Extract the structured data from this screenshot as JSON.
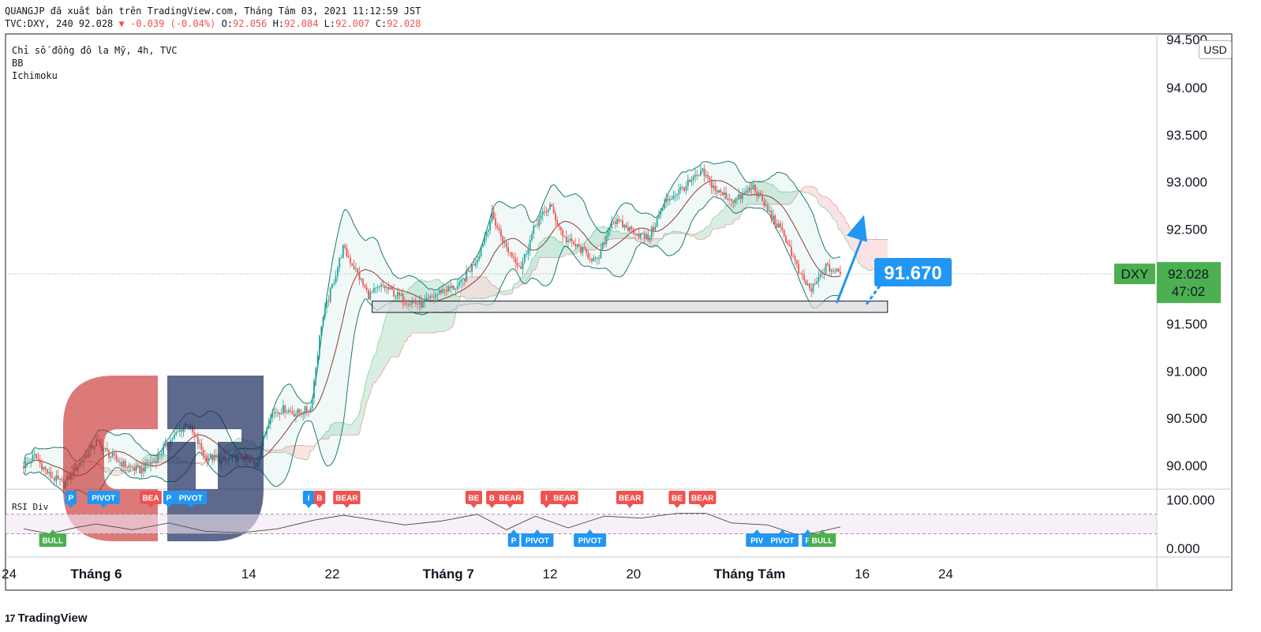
{
  "header": {
    "publisher_line": "QUANGJP đã xuất bản trên TradingView.com, Tháng Tám 03, 2021 11:12:59 JST",
    "symbol_prefix": "TVC:DXY, 240 92.028",
    "change": "▼ -0.039 (-0.04%)",
    "ohlc_o_label": "O:",
    "ohlc_o": "92.056",
    "ohlc_h_label": "H:",
    "ohlc_h": "92.084",
    "ohlc_l_label": "L:",
    "ohlc_l": "92.007",
    "ohlc_c_label": "C:",
    "ohlc_c": "92.028"
  },
  "legend": {
    "line1": "Chỉ số đồng đô la Mỹ, 4h, TVC",
    "line2": "BB",
    "line3": "Ichimoku",
    "rsi": "RSI Div"
  },
  "currency_button": "USD",
  "price_label": {
    "symbol": "DXY",
    "price": "92.028",
    "countdown": "47:02"
  },
  "annotation": {
    "target": "91.670"
  },
  "brand": {
    "name": "TradingView",
    "logo_icon": "tradingview-logo-icon"
  },
  "colors": {
    "up": "#26a69a",
    "down": "#ef5350",
    "bb": "#1b7a6e",
    "accent_blue": "#2196f3",
    "price_green": "#4caf50",
    "cloud_green": "#b8e0c8",
    "cloud_red": "#f7cccc",
    "watermark_red": "#c62828",
    "watermark_navy": "#1a2a5c"
  },
  "chart_data": {
    "type": "candlestick",
    "price_axis": {
      "ticks": [
        90.0,
        90.5,
        91.0,
        91.5,
        92.0,
        92.5,
        93.0,
        93.5,
        94.0
      ],
      "tick_labels": [
        "90.000",
        "90.500",
        "91.000",
        "91.500",
        "",
        "92.500",
        "93.000",
        "93.500",
        "94.000"
      ],
      "top_cut_label": "94.500",
      "range": [
        89.75,
        94.55
      ]
    },
    "rsi_axis": {
      "ticks": [
        0,
        100
      ],
      "tick_labels": [
        "0.000",
        "100.000"
      ],
      "range": [
        -10,
        120
      ]
    },
    "time_axis": {
      "labels": [
        "24",
        "Tháng 6",
        "14",
        "22",
        "Tháng 7",
        "12",
        "20",
        "Tháng Tám",
        "16",
        "24"
      ],
      "bold": [
        false,
        true,
        false,
        false,
        true,
        false,
        false,
        true,
        false,
        false
      ],
      "bar_index": [
        -8,
        40,
        124,
        170,
        234,
        290,
        336,
        400,
        462,
        508
      ]
    },
    "close_path": [
      [
        0,
        90.0
      ],
      [
        6,
        90.1
      ],
      [
        14,
        89.9
      ],
      [
        22,
        89.8
      ],
      [
        32,
        90.05
      ],
      [
        40,
        90.25
      ],
      [
        48,
        90.1
      ],
      [
        56,
        90.0
      ],
      [
        64,
        89.95
      ],
      [
        72,
        90.05
      ],
      [
        80,
        90.25
      ],
      [
        90,
        90.45
      ],
      [
        100,
        90.1
      ],
      [
        110,
        90.05
      ],
      [
        120,
        90.1
      ],
      [
        128,
        90.0
      ],
      [
        136,
        90.55
      ],
      [
        144,
        90.6
      ],
      [
        150,
        90.55
      ],
      [
        158,
        90.6
      ],
      [
        164,
        91.5
      ],
      [
        170,
        91.9
      ],
      [
        176,
        92.3
      ],
      [
        182,
        92.1
      ],
      [
        190,
        91.8
      ],
      [
        198,
        91.9
      ],
      [
        210,
        91.75
      ],
      [
        220,
        91.7
      ],
      [
        230,
        91.85
      ],
      [
        240,
        91.9
      ],
      [
        250,
        92.2
      ],
      [
        258,
        92.65
      ],
      [
        266,
        92.3
      ],
      [
        274,
        92.1
      ],
      [
        282,
        92.55
      ],
      [
        290,
        92.75
      ],
      [
        298,
        92.4
      ],
      [
        306,
        92.3
      ],
      [
        316,
        92.15
      ],
      [
        324,
        92.6
      ],
      [
        334,
        92.5
      ],
      [
        344,
        92.4
      ],
      [
        354,
        92.8
      ],
      [
        364,
        92.95
      ],
      [
        374,
        93.1
      ],
      [
        382,
        92.9
      ],
      [
        392,
        92.8
      ],
      [
        402,
        92.95
      ],
      [
        410,
        92.7
      ],
      [
        420,
        92.4
      ],
      [
        428,
        92.0
      ],
      [
        434,
        91.85
      ],
      [
        442,
        92.1
      ],
      [
        450,
        92.03
      ]
    ],
    "last_bar_index": 450,
    "last_price": 92.028,
    "support_zone": {
      "x_from": 192,
      "x_to": 476,
      "low": 91.62,
      "high": 91.74
    },
    "projection_arrow": {
      "from": [
        448,
        91.72
      ],
      "to": [
        463,
        92.65
      ]
    },
    "target_price": 91.67,
    "rsi_levels": [
      70,
      30
    ],
    "rsi_path": [
      [
        0,
        40
      ],
      [
        14,
        30
      ],
      [
        28,
        42
      ],
      [
        40,
        50
      ],
      [
        60,
        38
      ],
      [
        80,
        52
      ],
      [
        100,
        35
      ],
      [
        120,
        32
      ],
      [
        140,
        40
      ],
      [
        160,
        58
      ],
      [
        176,
        68
      ],
      [
        190,
        60
      ],
      [
        210,
        48
      ],
      [
        230,
        56
      ],
      [
        250,
        70
      ],
      [
        266,
        38
      ],
      [
        282,
        66
      ],
      [
        300,
        42
      ],
      [
        320,
        66
      ],
      [
        340,
        62
      ],
      [
        360,
        72
      ],
      [
        376,
        72
      ],
      [
        390,
        52
      ],
      [
        410,
        48
      ],
      [
        426,
        28
      ],
      [
        436,
        32
      ],
      [
        450,
        44
      ]
    ],
    "signals": [
      {
        "text": "BULL",
        "type": "bull",
        "x": 16,
        "pos": "below"
      },
      {
        "text": "P",
        "type": "pivot",
        "x": 26,
        "pos": "above"
      },
      {
        "text": "PIVOT",
        "type": "pivot",
        "x": 44,
        "pos": "above"
      },
      {
        "text": "BEA",
        "type": "bear",
        "x": 70,
        "pos": "above"
      },
      {
        "text": "P",
        "type": "pivot",
        "x": 80,
        "pos": "above"
      },
      {
        "text": "PIVOT",
        "type": "pivot",
        "x": 92,
        "pos": "above"
      },
      {
        "text": "I",
        "type": "pivot",
        "x": 157,
        "pos": "above"
      },
      {
        "text": "B",
        "type": "bear",
        "x": 163,
        "pos": "above"
      },
      {
        "text": "BEAR",
        "type": "bear",
        "x": 178,
        "pos": "above"
      },
      {
        "text": "BE",
        "type": "bear",
        "x": 248,
        "pos": "above"
      },
      {
        "text": "B",
        "type": "bear",
        "x": 258,
        "pos": "above"
      },
      {
        "text": "BEAR",
        "type": "bear",
        "x": 268,
        "pos": "above"
      },
      {
        "text": "P",
        "type": "pivot",
        "x": 270,
        "pos": "below"
      },
      {
        "text": "PIVOT",
        "type": "pivot",
        "x": 283,
        "pos": "below"
      },
      {
        "text": "I",
        "type": "bear",
        "x": 288,
        "pos": "above"
      },
      {
        "text": "BEAR",
        "type": "bear",
        "x": 298,
        "pos": "above"
      },
      {
        "text": "PIVOT",
        "type": "pivot",
        "x": 312,
        "pos": "below"
      },
      {
        "text": "BEAR",
        "type": "bear",
        "x": 334,
        "pos": "above"
      },
      {
        "text": "BE",
        "type": "bear",
        "x": 360,
        "pos": "above"
      },
      {
        "text": "BEAR",
        "type": "bear",
        "x": 374,
        "pos": "above"
      },
      {
        "text": "PIV",
        "type": "pivot",
        "x": 404,
        "pos": "below"
      },
      {
        "text": "PIVOT",
        "type": "pivot",
        "x": 418,
        "pos": "below"
      },
      {
        "text": "P",
        "type": "pivot",
        "x": 432,
        "pos": "below"
      },
      {
        "text": "BULL",
        "type": "bull",
        "x": 440,
        "pos": "below"
      }
    ]
  }
}
